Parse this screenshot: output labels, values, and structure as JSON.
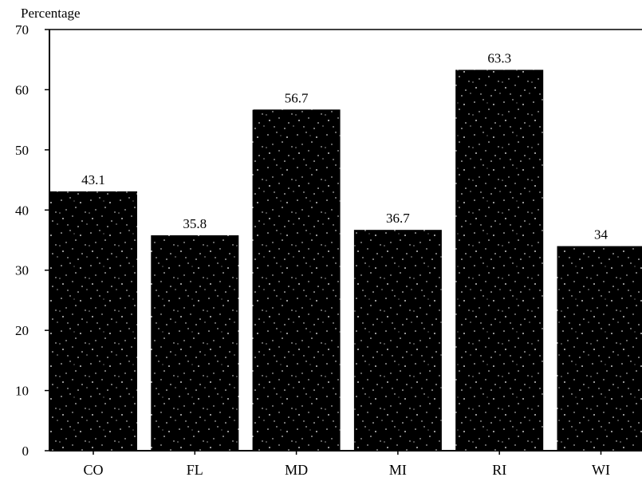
{
  "chart_data": {
    "type": "bar",
    "ylabel": "Percentage",
    "xlabel": "",
    "title": "",
    "categories": [
      "CO",
      "FL",
      "MD",
      "MI",
      "RI",
      "WI"
    ],
    "values": [
      43.1,
      35.8,
      56.7,
      36.7,
      63.3,
      34
    ],
    "value_labels": [
      "43.1",
      "35.8",
      "56.7",
      "36.7",
      "63.3",
      "34"
    ],
    "ylim": [
      0,
      70
    ],
    "yticks": [
      0,
      10,
      20,
      30,
      40,
      50,
      60,
      70
    ],
    "grid": false,
    "bar_color": "#000000",
    "bar_speckle_color": "#ffffff"
  }
}
